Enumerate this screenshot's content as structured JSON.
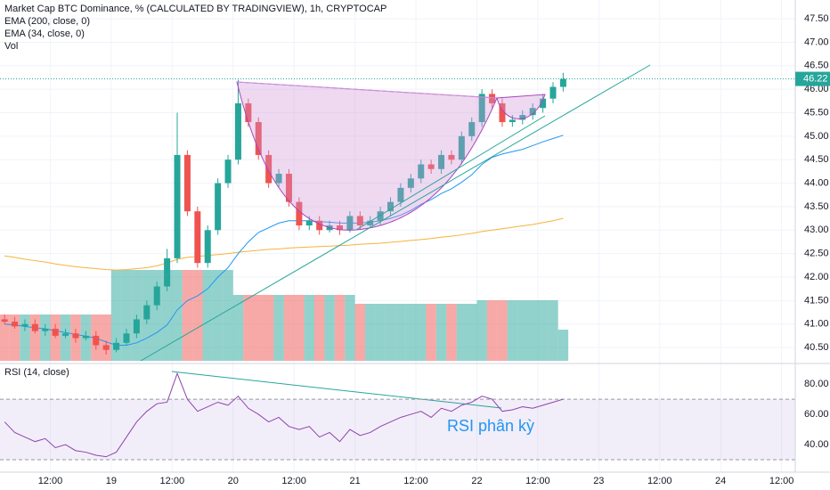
{
  "chart_data": {
    "type": "candlestick",
    "title": "Market Cap BTC Dominance, % (CALCULATED BY TRADINGVIEW), 1h, CRYPTOCAP",
    "x": [
      3,
      5,
      7,
      9,
      11,
      13,
      15,
      17,
      19,
      21,
      23,
      25,
      27,
      29,
      31,
      33,
      35,
      37,
      39,
      41,
      43,
      45,
      47,
      49,
      51,
      53,
      55,
      57,
      59,
      61,
      63,
      65,
      67,
      69,
      71,
      73,
      75,
      77,
      79,
      81,
      83,
      85,
      87,
      89,
      91,
      93,
      95,
      97,
      99,
      101,
      103,
      105,
      107,
      109,
      111,
      113
    ],
    "open": [
      41.1,
      41.05,
      40.95,
      41.0,
      40.85,
      40.9,
      40.75,
      40.8,
      40.7,
      40.75,
      40.55,
      40.45,
      40.6,
      40.8,
      41.1,
      41.4,
      41.8,
      42.4,
      44.6,
      43.4,
      42.3,
      43.0,
      44.0,
      44.5,
      45.7,
      45.3,
      44.6,
      44.0,
      44.2,
      43.6,
      43.1,
      43.2,
      43.0,
      43.1,
      43.0,
      43.3,
      43.1,
      43.2,
      43.4,
      43.6,
      43.9,
      44.1,
      44.4,
      44.3,
      44.6,
      44.5,
      45.0,
      45.3,
      45.9,
      45.7,
      45.3,
      45.35,
      45.45,
      45.6,
      45.8,
      46.05
    ],
    "high": [
      41.2,
      41.15,
      41.1,
      41.1,
      41.0,
      41.0,
      40.9,
      40.9,
      40.85,
      40.85,
      40.65,
      40.7,
      40.9,
      41.2,
      41.5,
      41.9,
      42.6,
      45.5,
      44.7,
      43.5,
      43.1,
      44.1,
      44.6,
      46.2,
      45.8,
      45.4,
      44.7,
      44.3,
      44.3,
      43.7,
      43.3,
      43.3,
      43.2,
      43.2,
      43.4,
      43.4,
      43.3,
      43.5,
      43.7,
      44.0,
      44.2,
      44.5,
      44.5,
      44.7,
      44.7,
      45.1,
      45.4,
      46.0,
      46.0,
      45.8,
      45.45,
      45.55,
      45.7,
      45.9,
      46.15,
      46.35
    ],
    "low": [
      41.0,
      40.9,
      40.85,
      40.8,
      40.75,
      40.7,
      40.7,
      40.6,
      40.65,
      40.45,
      40.35,
      40.4,
      40.55,
      40.7,
      41.0,
      41.3,
      41.7,
      42.3,
      43.3,
      42.2,
      42.2,
      42.9,
      43.9,
      44.4,
      45.2,
      44.5,
      43.9,
      43.9,
      43.5,
      43.0,
      43.0,
      42.9,
      42.95,
      42.9,
      42.95,
      43.0,
      43.05,
      43.1,
      43.3,
      43.5,
      43.8,
      44.0,
      44.2,
      44.2,
      44.4,
      44.4,
      44.9,
      45.2,
      45.6,
      45.2,
      45.2,
      45.25,
      45.35,
      45.5,
      45.7,
      45.95
    ],
    "close": [
      41.05,
      40.95,
      41.0,
      40.85,
      40.9,
      40.75,
      40.8,
      40.7,
      40.75,
      40.55,
      40.45,
      40.6,
      40.8,
      41.1,
      41.4,
      41.8,
      42.4,
      44.6,
      43.4,
      42.3,
      43.0,
      44.0,
      44.5,
      45.7,
      45.3,
      44.6,
      44.0,
      44.2,
      43.6,
      43.1,
      43.2,
      43.0,
      43.1,
      43.0,
      43.3,
      43.1,
      43.2,
      43.4,
      43.6,
      43.9,
      44.1,
      44.4,
      44.3,
      44.6,
      44.5,
      45.0,
      45.3,
      45.9,
      45.7,
      45.3,
      45.35,
      45.45,
      45.6,
      45.8,
      46.05,
      46.22
    ],
    "up_color": "#26a69a",
    "down_color": "#ef5350",
    "ylim": [
      40.16,
      47.9
    ],
    "yticks": [
      {
        "value": 40.5,
        "label": "40.50"
      },
      {
        "value": 41,
        "label": "41.00"
      },
      {
        "value": 41.5,
        "label": "41.50"
      },
      {
        "value": 42,
        "label": "42.00"
      },
      {
        "value": 42.5,
        "label": "42.50"
      },
      {
        "value": 43,
        "label": "43.00"
      },
      {
        "value": 43.5,
        "label": "43.50"
      },
      {
        "value": 44,
        "label": "44.00"
      },
      {
        "value": 44.5,
        "label": "44.50"
      },
      {
        "value": 45,
        "label": "45.00"
      },
      {
        "value": 45.5,
        "label": "45.50"
      },
      {
        "value": 46,
        "label": "46.00"
      },
      {
        "value": 46.5,
        "label": "46.50"
      },
      {
        "value": 47,
        "label": "47.00"
      },
      {
        "value": 47.5,
        "label": "47.50"
      }
    ],
    "xlim": [
      2.1,
      158.7
    ],
    "xticks": [
      {
        "value": 12,
        "label": "12:00"
      },
      {
        "value": 24,
        "label": "19"
      },
      {
        "value": 36,
        "label": "12:00"
      },
      {
        "value": 48,
        "label": "20"
      },
      {
        "value": 60,
        "label": "12:00"
      },
      {
        "value": 72,
        "label": "21"
      },
      {
        "value": 84,
        "label": "12:00"
      },
      {
        "value": 96,
        "label": "22"
      },
      {
        "value": 108,
        "label": "12:00"
      },
      {
        "value": 120,
        "label": "23"
      },
      {
        "value": 132,
        "label": "12:00"
      },
      {
        "value": 144,
        "label": "24"
      },
      {
        "value": 156,
        "label": "12:00"
      }
    ],
    "series": [
      {
        "name": "EMA (200, close, 0)",
        "color": "#f7b23b",
        "values": [
          42.45,
          42.42,
          42.38,
          42.35,
          42.32,
          42.28,
          42.25,
          42.22,
          42.2,
          42.18,
          42.16,
          42.15,
          42.16,
          42.18,
          42.2,
          42.24,
          42.3,
          42.38,
          42.42,
          42.44,
          42.46,
          42.48,
          42.5,
          42.53,
          42.55,
          42.57,
          42.59,
          42.6,
          42.62,
          42.63,
          42.64,
          42.65,
          42.66,
          42.67,
          42.68,
          42.7,
          42.71,
          42.72,
          42.74,
          42.76,
          42.78,
          42.8,
          42.82,
          42.85,
          42.87,
          42.9,
          42.93,
          42.97,
          43.0,
          43.03,
          43.06,
          43.09,
          43.12,
          43.16,
          43.2,
          43.25
        ]
      },
      {
        "name": "EMA (34, close, 0)",
        "color": "#2196f3",
        "values": [
          41.0,
          40.98,
          40.95,
          40.92,
          40.9,
          40.86,
          40.82,
          40.78,
          40.74,
          40.7,
          40.62,
          40.55,
          40.55,
          40.6,
          40.7,
          40.82,
          40.98,
          41.3,
          41.5,
          41.6,
          41.75,
          42.0,
          42.2,
          42.5,
          42.75,
          42.95,
          43.05,
          43.15,
          43.2,
          43.2,
          43.2,
          43.18,
          43.17,
          43.15,
          43.15,
          43.15,
          43.17,
          43.2,
          43.25,
          43.32,
          43.42,
          43.55,
          43.65,
          43.78,
          43.88,
          44.02,
          44.18,
          44.4,
          44.55,
          44.62,
          44.67,
          44.72,
          44.8,
          44.88,
          44.95,
          45.02
        ]
      }
    ],
    "volume": {
      "name": "Vol",
      "ylim": [
        0,
        408
      ],
      "values": [
        52,
        52,
        52,
        52,
        52,
        52,
        52,
        52,
        52,
        52,
        52,
        102,
        102,
        102,
        102,
        102,
        102,
        102,
        102,
        102,
        102,
        102,
        102,
        74,
        74,
        74,
        74,
        74,
        74,
        74,
        74,
        74,
        74,
        74,
        74,
        64,
        64,
        64,
        64,
        64,
        64,
        64,
        64,
        64,
        64,
        64,
        64,
        68,
        68,
        68,
        68,
        68,
        68,
        68,
        68,
        35
      ]
    },
    "rsi": {
      "name": "RSI (14, close)",
      "color": "#8e44ad",
      "band": [
        30,
        70
      ],
      "ylim": [
        21.8,
        92.4
      ],
      "yticks": [
        {
          "value": 40,
          "label": "40.00"
        },
        {
          "value": 60,
          "label": "60.00"
        },
        {
          "value": 80,
          "label": "80.00"
        }
      ],
      "values": [
        55,
        48,
        45,
        42,
        44,
        38,
        40,
        36,
        35,
        33,
        32,
        35,
        45,
        55,
        62,
        67,
        68,
        87,
        70,
        62,
        65,
        68,
        66,
        72,
        64,
        60,
        55,
        58,
        52,
        50,
        52,
        45,
        48,
        42,
        50,
        46,
        48,
        52,
        55,
        58,
        60,
        62,
        58,
        64,
        62,
        66,
        68,
        72,
        70,
        62,
        63,
        65,
        64,
        66,
        68,
        70
      ]
    },
    "annotation": "RSI phân kỳ"
  }
}
